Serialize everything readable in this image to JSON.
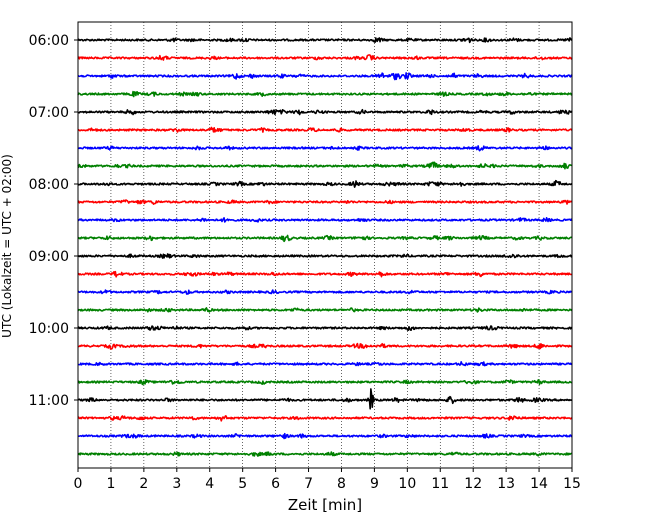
{
  "chart_data": {
    "type": "line",
    "title": "",
    "xlabel": "Zeit  [min]",
    "ylabel": "UTC (Lokalzeit = UTC + 02:00)",
    "xlim": [
      0,
      15
    ],
    "x_ticks": [
      0,
      1,
      2,
      3,
      4,
      5,
      6,
      7,
      8,
      9,
      10,
      11,
      12,
      13,
      14,
      15
    ],
    "y_ticks": [
      "06:00",
      "07:00",
      "08:00",
      "09:00",
      "10:00",
      "11:00"
    ],
    "grid": "vertical dotted",
    "trace_minutes": 15,
    "traces_per_hour": 4,
    "trace_colors": [
      "#000000",
      "#ff0000",
      "#0000ff",
      "#008000"
    ],
    "series": [
      {
        "start": "06:00",
        "color": "#000000",
        "events": [
          {
            "t": 9.1,
            "amp": 0.7
          },
          {
            "t": 11.8,
            "amp": 0.5
          }
        ]
      },
      {
        "start": "06:15",
        "color": "#ff0000",
        "events": []
      },
      {
        "start": "06:30",
        "color": "#0000ff",
        "events": [
          {
            "t": 4.8,
            "amp": 0.8
          },
          {
            "t": 9.2,
            "amp": 0.9
          },
          {
            "t": 9.6,
            "amp": 0.7
          },
          {
            "t": 10.0,
            "amp": 0.8
          },
          {
            "t": 11.4,
            "amp": 0.6
          }
        ]
      },
      {
        "start": "06:45",
        "color": "#008000",
        "events": [
          {
            "t": 11.1,
            "amp": 0.5
          }
        ]
      },
      {
        "start": "07:00",
        "color": "#000000",
        "events": [
          {
            "t": 1.6,
            "amp": 0.8
          },
          {
            "t": 6.7,
            "amp": 0.6
          },
          {
            "t": 10.7,
            "amp": 0.6
          }
        ]
      },
      {
        "start": "07:15",
        "color": "#ff0000",
        "events": []
      },
      {
        "start": "07:30",
        "color": "#0000ff",
        "events": []
      },
      {
        "start": "07:45",
        "color": "#008000",
        "events": [
          {
            "t": 10.8,
            "amp": 0.9
          },
          {
            "t": 12.3,
            "amp": 0.5
          }
        ]
      },
      {
        "start": "08:00",
        "color": "#000000",
        "events": [
          {
            "t": 4.9,
            "amp": 0.5
          },
          {
            "t": 8.4,
            "amp": 0.5
          },
          {
            "t": 10.9,
            "amp": 0.5
          },
          {
            "t": 11.6,
            "amp": 0.6
          }
        ]
      },
      {
        "start": "08:15",
        "color": "#ff0000",
        "events": []
      },
      {
        "start": "08:30",
        "color": "#0000ff",
        "events": [
          {
            "t": 3.8,
            "amp": 0.4
          }
        ]
      },
      {
        "start": "08:45",
        "color": "#008000",
        "events": [
          {
            "t": 2.2,
            "amp": 0.6
          },
          {
            "t": 6.3,
            "amp": 0.6
          },
          {
            "t": 7.6,
            "amp": 0.5
          }
        ]
      },
      {
        "start": "09:00",
        "color": "#000000",
        "events": []
      },
      {
        "start": "09:15",
        "color": "#ff0000",
        "events": [
          {
            "t": 12.2,
            "amp": 0.7
          }
        ]
      },
      {
        "start": "09:30",
        "color": "#0000ff",
        "events": []
      },
      {
        "start": "09:45",
        "color": "#008000",
        "events": []
      },
      {
        "start": "10:00",
        "color": "#000000",
        "events": []
      },
      {
        "start": "10:15",
        "color": "#ff0000",
        "events": [
          {
            "t": 14.0,
            "amp": 0.5
          }
        ]
      },
      {
        "start": "10:30",
        "color": "#0000ff",
        "events": []
      },
      {
        "start": "10:45",
        "color": "#008000",
        "events": [
          {
            "t": 2.0,
            "amp": 0.6
          },
          {
            "t": 2.8,
            "amp": 0.5
          },
          {
            "t": 14.0,
            "amp": 0.5
          }
        ]
      },
      {
        "start": "11:00",
        "color": "#000000",
        "events": [
          {
            "t": 8.9,
            "amp": 3.3
          },
          {
            "t": 13.4,
            "amp": 0.7
          },
          {
            "t": 11.3,
            "amp": 0.5
          }
        ]
      },
      {
        "start": "11:15",
        "color": "#ff0000",
        "events": [
          {
            "t": 1.4,
            "amp": 0.5
          },
          {
            "t": 13.2,
            "amp": 0.8
          }
        ]
      },
      {
        "start": "11:30",
        "color": "#0000ff",
        "events": [
          {
            "t": 3.6,
            "amp": 0.4
          },
          {
            "t": 6.8,
            "amp": 0.4
          }
        ]
      },
      {
        "start": "11:45",
        "color": "#008000",
        "events": [
          {
            "t": 5.8,
            "amp": 0.4
          }
        ]
      }
    ]
  }
}
